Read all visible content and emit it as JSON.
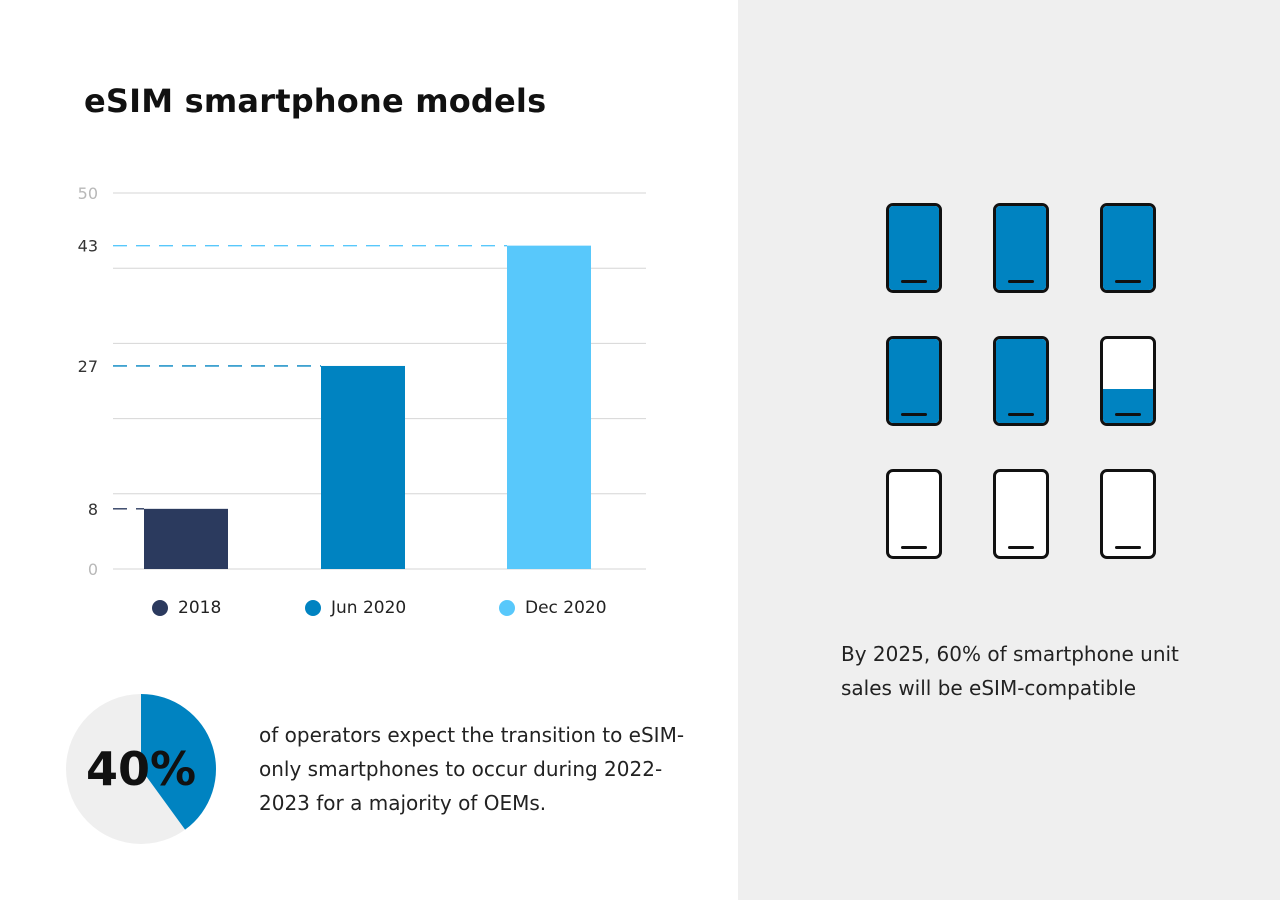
{
  "colors": {
    "dark_navy": "#2b3a5e",
    "blue": "#0083c1",
    "light_blue": "#58c8fb",
    "pie_rest": "#efefef",
    "grid": "#d6d6d6",
    "right_bg": "#efefef"
  },
  "title": "eSIM smartphone models",
  "chart_data": {
    "type": "bar",
    "title": "eSIM smartphone models",
    "categories": [
      "2018",
      "Jun 2020",
      "Dec 2020"
    ],
    "values": [
      8,
      27,
      43
    ],
    "colors": [
      "#2b3a5e",
      "#0083c1",
      "#58c8fb"
    ],
    "ylim": [
      0,
      50
    ],
    "grid_ticks": [
      0,
      10,
      20,
      30,
      40,
      50
    ],
    "tick_labels": [
      "0",
      "8",
      "27",
      "43",
      "50"
    ],
    "reference_lines": [
      {
        "value": 8,
        "color": "#2b3a5e"
      },
      {
        "value": 27,
        "color": "#0083c1"
      },
      {
        "value": 43,
        "color": "#58c8fb"
      }
    ],
    "legend": [
      "2018",
      "Jun 2020",
      "Dec 2020"
    ],
    "legend_position": "bottom"
  },
  "pie": {
    "label": "40%",
    "percent": 40,
    "description": "of operators expect the transition to eSIM-only smartphones to occur during 2022-2023 for a majority of OEMs."
  },
  "phones": {
    "fills": [
      1,
      1,
      1,
      1,
      1,
      0.4,
      0,
      0,
      0
    ],
    "description": "By 2025, 60% of smartphone unit sales will be eSIM-compatible"
  }
}
